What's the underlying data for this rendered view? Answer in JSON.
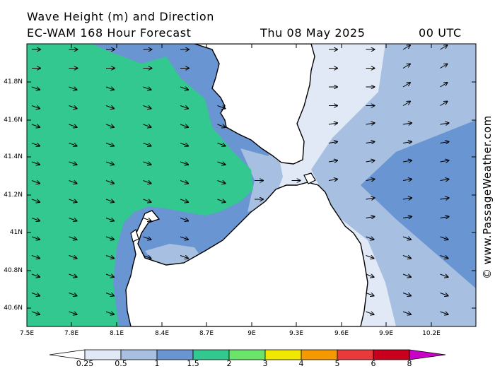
{
  "header": {
    "line1": "Wave Height (m) and Direction",
    "line2_model": "EC-WAM 168 Hour Forecast",
    "line2_date": "Thu 08 May 2025",
    "line2_time": "00 UTC"
  },
  "credit": "© www.PassageWeather.com",
  "axes": {
    "lat_labels": [
      "41.8N",
      "41.6N",
      "41.4N",
      "41.2N",
      "41N",
      "40.8N",
      "40.6N"
    ],
    "lon_labels": [
      "7.5E",
      "7.8E",
      "8.1E",
      "8.4E",
      "8.7E",
      "9E",
      "9.3E",
      "9.6E",
      "9.9E",
      "10.2E"
    ]
  },
  "colorbar": {
    "labels": [
      "0.25",
      "0.5",
      "1",
      "1.5",
      "2",
      "3",
      "4",
      "5",
      "6",
      "8"
    ],
    "colors": [
      "#ffffff",
      "#e1e9f6",
      "#a7bfe0",
      "#6a95d3",
      "#32c890",
      "#6be46b",
      "#f0e800",
      "#f49a00",
      "#e83a3a",
      "#c8001e",
      "#c800c8"
    ]
  },
  "legend_fill_colors": {
    "0_25_0_5": "#e1e9f6",
    "0_5_1": "#a7bfe0",
    "1_1_5": "#6a95d3",
    "1_5_2": "#32c890",
    "land": "#ffffff"
  }
}
